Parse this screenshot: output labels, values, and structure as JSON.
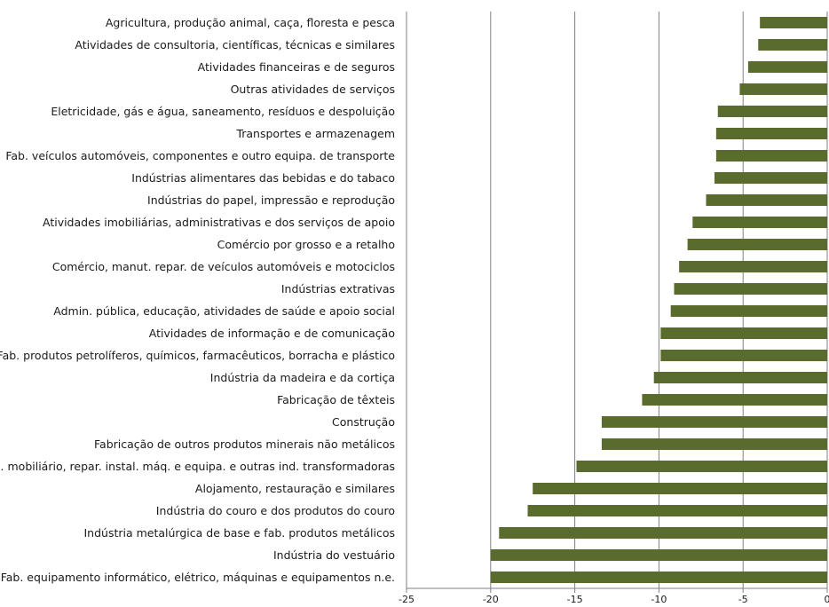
{
  "chart_data": {
    "type": "bar",
    "orientation": "horizontal",
    "title": "",
    "xlabel": "",
    "ylabel": "",
    "xlim": [
      -25,
      0
    ],
    "xticks": [
      -25,
      -20,
      -15,
      -10,
      -5,
      0
    ],
    "grid": "vertical",
    "legend": "none",
    "bar_color": "#5a6b2e",
    "categories": [
      "Agricultura, produção animal, caça, floresta e pesca",
      "Atividades de consultoria, científicas, técnicas e similares",
      "Atividades financeiras e de seguros",
      "Outras atividades de serviços",
      "Eletricidade, gás e água, saneamento, resíduos e despoluição",
      "Transportes e armazenagem",
      "Fab. veículos automóveis, componentes e outro equipa. de transporte",
      "Indústrias alimentares das bebidas e do tabaco",
      "Indústrias do papel, impressão e reprodução",
      "Atividades imobiliárias, administrativas e dos serviços de apoio",
      "Comércio por grosso e a retalho",
      "Comércio, manut. repar. de veículos automóveis e motociclos",
      "Indústrias extrativas",
      "Admin. pública, educação, atividades de saúde e apoio social",
      "Atividades de informação e de comunicação",
      "Fab. produtos petrolíferos, químicos, farmacêuticos, borracha e plástico",
      "Indústria da madeira e da cortiça",
      "Fabricação de têxteis",
      "Construção",
      "Fabricação de outros produtos minerais não metálicos",
      "Fab. mobiliário, repar. instal. máq. e equipa. e outras ind. transformadoras",
      "Alojamento, restauração e similares",
      "Indústria do couro e dos produtos do couro",
      "Indústria metalúrgica de base e fab. produtos metálicos",
      "Indústria do vestuário",
      "Fab. equipamento informático, elétrico, máquinas e equipamentos n.e."
    ],
    "values": [
      -4.0,
      -4.1,
      -4.7,
      -5.2,
      -6.5,
      -6.6,
      -6.6,
      -6.7,
      -7.2,
      -8.0,
      -8.3,
      -8.8,
      -9.1,
      -9.3,
      -9.9,
      -9.9,
      -10.3,
      -11.0,
      -13.4,
      -13.4,
      -14.9,
      -17.5,
      -17.8,
      -19.5,
      -20.0,
      -20.0
    ]
  }
}
